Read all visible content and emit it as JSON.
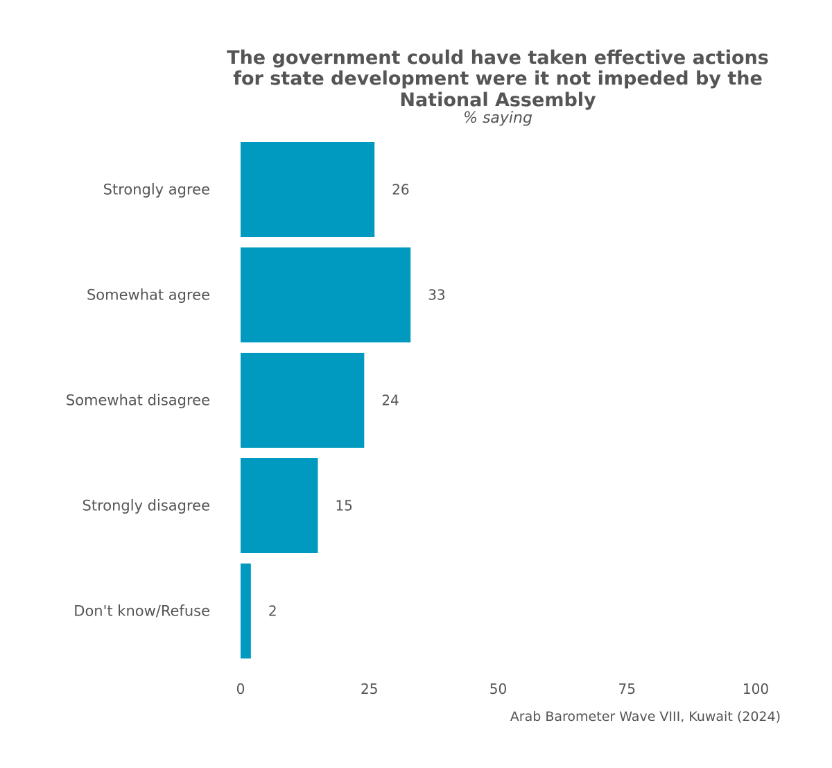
{
  "chart_data": {
    "type": "bar",
    "orientation": "horizontal",
    "title_lines": [
      "The government could have taken effective actions",
      "for state development were it not impeded by the",
      "National Assembly"
    ],
    "subtitle": "% saying",
    "categories": [
      "Strongly agree",
      "Somewhat agree",
      "Somewhat disagree",
      "Strongly disagree",
      "Don't know/Refuse"
    ],
    "values": [
      26,
      33,
      24,
      15,
      2
    ],
    "value_labels": [
      "26",
      "33",
      "24",
      "15",
      "2"
    ],
    "xlim": [
      0,
      100
    ],
    "xticks": [
      0,
      25,
      50,
      75,
      100
    ],
    "xtick_labels": [
      "0",
      "25",
      "50",
      "75",
      "100"
    ],
    "xlabel": "",
    "ylabel": "",
    "grid": false,
    "caption": "Arab Barometer Wave VIII, Kuwait (2024)",
    "bar_color": "#0099BF",
    "text_color": "#555555"
  }
}
